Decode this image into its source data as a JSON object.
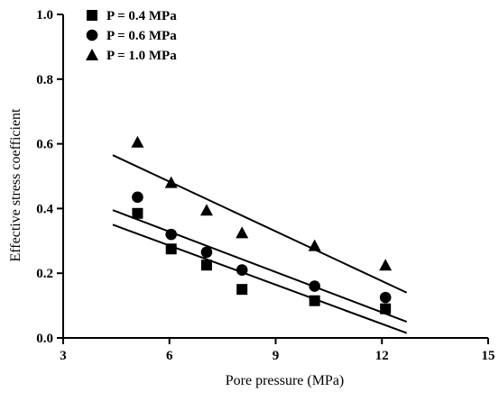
{
  "chart_data": {
    "type": "scatter",
    "xlabel": "Pore pressure (MPa)",
    "ylabel": "Effective stress coefficient",
    "xlim": [
      3,
      15
    ],
    "ylim": [
      0.0,
      1.0
    ],
    "xticks": [
      3,
      6,
      9,
      12,
      15
    ],
    "yticks": [
      0.0,
      0.2,
      0.4,
      0.6,
      0.8,
      1.0
    ],
    "xtick_labels": [
      "3",
      "6",
      "9",
      "12",
      "15"
    ],
    "ytick_labels": [
      "0.0",
      "0.2",
      "0.4",
      "0.6",
      "0.8",
      "1.0"
    ],
    "legend_placement": "top-left",
    "grid": false,
    "series": [
      {
        "name": "P = 0.4 MPa",
        "marker": "square",
        "x": [
          5.1,
          6.05,
          7.05,
          8.05,
          10.1,
          12.1
        ],
        "y": [
          0.385,
          0.275,
          0.225,
          0.15,
          0.115,
          0.09
        ],
        "fit": {
          "x": [
            4.4,
            12.7
          ],
          "y": [
            0.35,
            0.015
          ]
        }
      },
      {
        "name": "P = 0.6 MPa",
        "marker": "circle",
        "x": [
          5.1,
          6.05,
          7.05,
          8.05,
          10.1,
          12.1
        ],
        "y": [
          0.435,
          0.32,
          0.265,
          0.21,
          0.16,
          0.125
        ],
        "fit": {
          "x": [
            4.4,
            12.7
          ],
          "y": [
            0.395,
            0.05
          ]
        }
      },
      {
        "name": "P = 1.0 MPa",
        "marker": "triangle",
        "x": [
          5.1,
          6.05,
          7.05,
          8.05,
          10.1,
          12.1
        ],
        "y": [
          0.605,
          0.48,
          0.395,
          0.325,
          0.285,
          0.225
        ],
        "fit": {
          "x": [
            4.4,
            12.7
          ],
          "y": [
            0.565,
            0.14
          ]
        }
      }
    ]
  }
}
